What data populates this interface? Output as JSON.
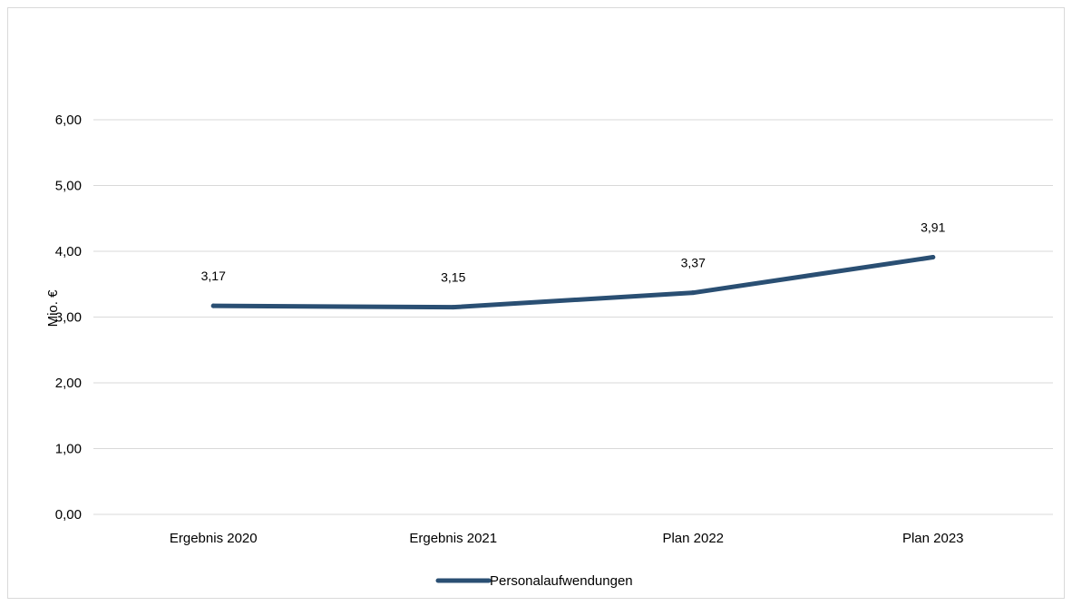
{
  "chart_data": {
    "type": "line",
    "ylabel": "Mio. €",
    "ylim": [
      0,
      6
    ],
    "y_ticks": [
      "0,00",
      "1,00",
      "2,00",
      "3,00",
      "4,00",
      "5,00",
      "6,00"
    ],
    "categories": [
      "Ergebnis 2020",
      "Ergebnis 2021",
      "Plan 2022",
      "Plan 2023"
    ],
    "series": [
      {
        "name": "Personalaufwendungen",
        "values": [
          3.17,
          3.15,
          3.37,
          3.91
        ],
        "labels": [
          "3,17",
          "3,15",
          "3,37",
          "3,91"
        ],
        "color": "#2a4f73"
      }
    ],
    "grid": true,
    "legend": "bottom"
  }
}
